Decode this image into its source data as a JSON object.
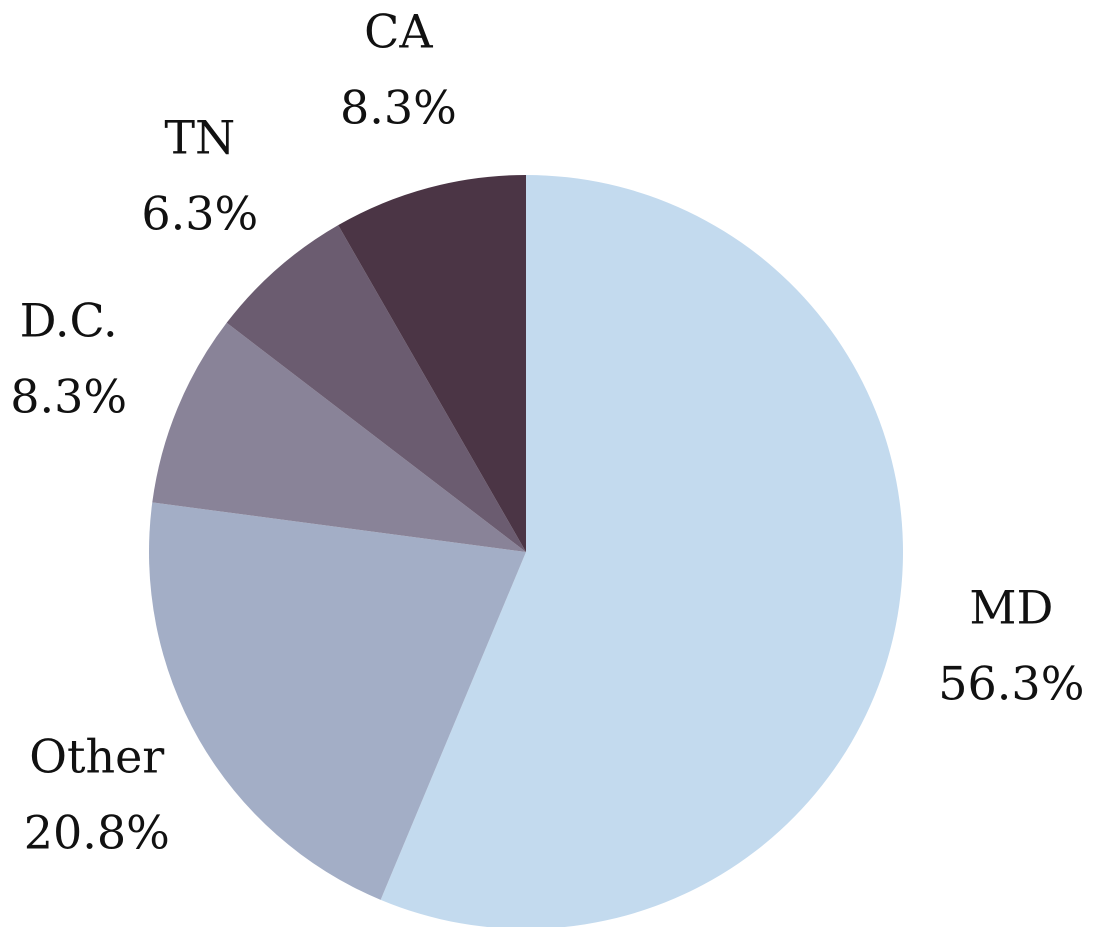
{
  "chart_data": {
    "type": "pie",
    "labels": [
      "MD",
      "Other",
      "D.C.",
      "TN",
      "CA"
    ],
    "values": [
      56.3,
      20.8,
      8.3,
      6.3,
      8.3
    ],
    "value_labels": [
      "56.3%",
      "20.8%",
      "8.3%",
      "6.3%",
      "8.3%"
    ],
    "colors": [
      "#c3daee",
      "#a3aec6",
      "#898398",
      "#6b5c70",
      "#4b3545"
    ],
    "start_angle": 0,
    "direction": "clockwise"
  }
}
